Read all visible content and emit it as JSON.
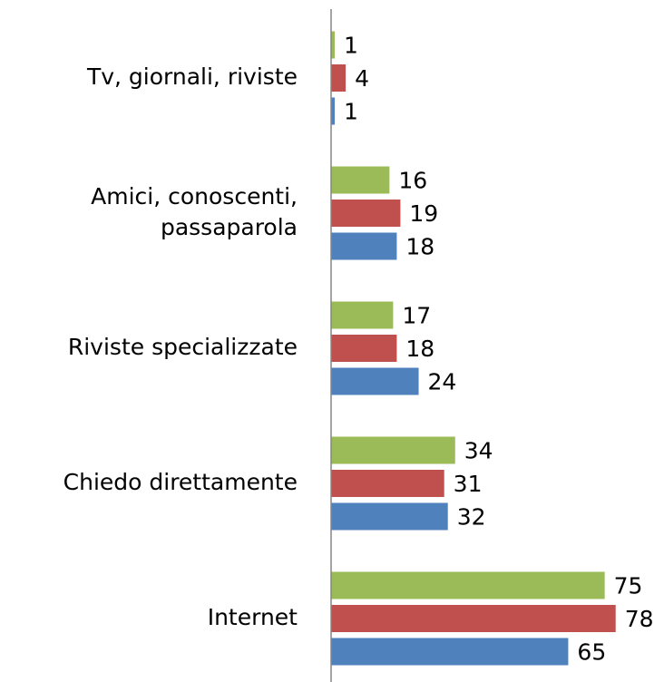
{
  "chart_data": {
    "type": "barh",
    "categories": [
      "Tv, giornali, riviste",
      "Amici, conoscenti,\npassaparola",
      "Riviste specializzate",
      "Chiedo direttamente",
      "Internet"
    ],
    "series": [
      {
        "color": "#9bbb59",
        "values": [
          1,
          16,
          17,
          34,
          75
        ]
      },
      {
        "color": "#c0504d",
        "values": [
          4,
          19,
          18,
          31,
          78
        ]
      },
      {
        "color": "#4f81bd",
        "values": [
          1,
          18,
          24,
          32,
          65
        ]
      }
    ],
    "xlim": [
      0,
      91
    ]
  }
}
